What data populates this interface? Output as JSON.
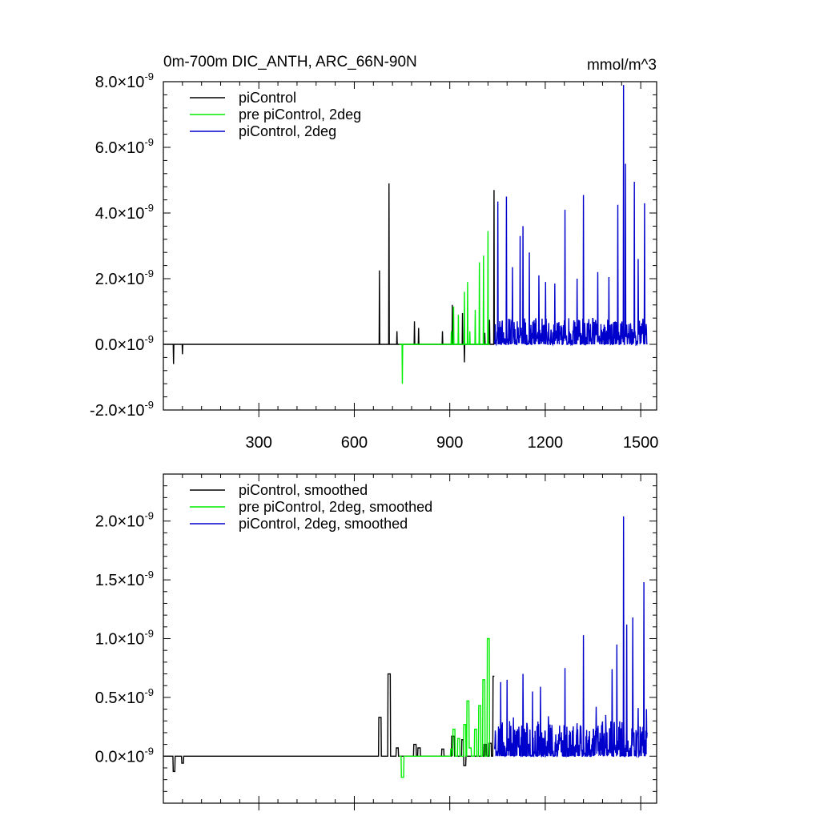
{
  "figure": {
    "title": "0m-700m DIC_ANTH, ARC_66N-90N",
    "units": "mmol/m^3"
  },
  "colors": {
    "piControl": "#000000",
    "pre_piControl_2deg": "#00ee00",
    "piControl_2deg": "#0000cc"
  },
  "chart_data": [
    {
      "type": "line",
      "title": "0m-700m DIC_ANTH, ARC_66N-90N",
      "units": "mmol/m^3",
      "xlim": [
        0,
        1550
      ],
      "ylim": [
        -2e-09,
        8e-09
      ],
      "xticks": [
        300,
        600,
        900,
        1200,
        1500
      ],
      "xtick_labels": [
        "300",
        "600",
        "900",
        "1200",
        "1500"
      ],
      "yticks": [
        -2e-09,
        0,
        2e-09,
        4e-09,
        6e-09,
        8e-09
      ],
      "ytick_labels": [
        {
          "mant": "-2.0",
          "exp": "-9"
        },
        {
          "mant": "0.0",
          "exp": "-9"
        },
        {
          "mant": "2.0",
          "exp": "-9"
        },
        {
          "mant": "4.0",
          "exp": "-9"
        },
        {
          "mant": "6.0",
          "exp": "-9"
        },
        {
          "mant": "8.0",
          "exp": "-9"
        }
      ],
      "legend_position": "top-left",
      "series": [
        {
          "name": "piControl",
          "color": "#000000",
          "range": [
            1,
            1040
          ],
          "spikes": [
            [
              32,
              -6e-10
            ],
            [
              60,
              -3e-10
            ],
            [
              679,
              2.25e-09
            ],
            [
              709,
              4.9e-09
            ],
            [
              734,
              4e-10
            ],
            [
              789,
              7e-10
            ],
            [
              802,
              5e-10
            ],
            [
              877,
              4e-10
            ],
            [
              908,
              1.2e-09
            ],
            [
              940,
              9.5e-10
            ],
            [
              946,
              -5.5e-10
            ],
            [
              1010,
              3.5e-10
            ],
            [
              1025,
              7.5e-10
            ],
            [
              1039,
              4.7e-09
            ]
          ]
        },
        {
          "name": "pre piControl, 2deg",
          "color": "#00ee00",
          "range": [
            741,
            1026
          ],
          "spikes": [
            [
              751,
              -1.2e-09
            ],
            [
              905,
              4e-10
            ],
            [
              912,
              1.15e-09
            ],
            [
              927,
              9e-10
            ],
            [
              946,
              1.6e-09
            ],
            [
              956,
              1.9e-09
            ],
            [
              963,
              4e-10
            ],
            [
              980,
              1.05e-09
            ],
            [
              993,
              2.5e-09
            ],
            [
              1006,
              2.7e-09
            ],
            [
              1020,
              3.45e-09
            ]
          ]
        },
        {
          "name": "piControl, 2deg",
          "color": "#0000cc",
          "range": [
            1041,
            1520
          ],
          "seed": 11,
          "noise": 8e-10,
          "spikes": [
            [
              1051,
              4.35e-09
            ],
            [
              1078,
              4.5e-09
            ],
            [
              1097,
              2.35e-09
            ],
            [
              1121,
              3.3e-09
            ],
            [
              1130,
              3.6e-09
            ],
            [
              1150,
              2.8e-09
            ],
            [
              1180,
              2.1e-09
            ],
            [
              1201,
              1.9e-09
            ],
            [
              1230,
              1.85e-09
            ],
            [
              1262,
              4.1e-09
            ],
            [
              1300,
              2e-09
            ],
            [
              1320,
              4.55e-09
            ],
            [
              1365,
              2.2e-09
            ],
            [
              1400,
              2.05e-09
            ],
            [
              1428,
              4.25e-09
            ],
            [
              1446,
              7.9e-09
            ],
            [
              1452,
              5.5e-09
            ],
            [
              1480,
              4.95e-09
            ],
            [
              1492,
              2.6e-09
            ],
            [
              1512,
              4.3e-09
            ]
          ]
        }
      ]
    },
    {
      "type": "line",
      "xlim": [
        0,
        1550
      ],
      "ylim": [
        -4e-10,
        2.4e-09
      ],
      "xticks": [
        300,
        600,
        900,
        1200,
        1500
      ],
      "yticks": [
        0,
        5e-10,
        1e-09,
        1.5e-09,
        2e-09
      ],
      "ytick_labels": [
        {
          "mant": "0.0",
          "exp": "-9"
        },
        {
          "mant": "0.5",
          "exp": "-9"
        },
        {
          "mant": "1.0",
          "exp": "-9"
        },
        {
          "mant": "1.5",
          "exp": "-9"
        },
        {
          "mant": "2.0",
          "exp": "-9"
        }
      ],
      "legend_position": "top-left",
      "series": [
        {
          "name": "piControl, smoothed",
          "color": "#000000",
          "range": [
            1,
            1040
          ],
          "blocks": [
            [
              31,
              36,
              -1.3e-10
            ],
            [
              58,
              63,
              -6e-11
            ],
            [
              677,
              684,
              3.3e-10
            ],
            [
              706,
              713,
              7e-10
            ],
            [
              732,
              738,
              7e-11
            ],
            [
              787,
              794,
              1e-10
            ],
            [
              800,
              807,
              7e-11
            ],
            [
              875,
              881,
              6e-11
            ],
            [
              906,
              914,
              1.7e-10
            ],
            [
              938,
              944,
              1.4e-10
            ],
            [
              944,
              950,
              -8e-11
            ],
            [
              1008,
              1014,
              1e-10
            ],
            [
              1023,
              1030,
              1.1e-10
            ],
            [
              1036,
              1041,
              6.8e-10
            ]
          ]
        },
        {
          "name": "pre piControl, 2deg, smoothed",
          "color": "#00ee00",
          "range": [
            741,
            1026
          ],
          "blocks": [
            [
              748,
              755,
              -1.8e-10
            ],
            [
              903,
              908,
              6e-11
            ],
            [
              910,
              916,
              2.3e-10
            ],
            [
              925,
              931,
              1.5e-10
            ],
            [
              944,
              950,
              2.7e-10
            ],
            [
              954,
              960,
              4.7e-10
            ],
            [
              961,
              967,
              7e-11
            ],
            [
              978,
              984,
              2.3e-10
            ],
            [
              991,
              997,
              4.3e-10
            ],
            [
              1004,
              1010,
              6.5e-10
            ],
            [
              1018,
              1024,
              1e-09
            ]
          ]
        },
        {
          "name": "piControl, 2deg, smoothed",
          "color": "#0000cc",
          "range": [
            1041,
            1520
          ],
          "seed": 23,
          "noise": 3e-10,
          "spikes": [
            [
              1060,
              6.3e-10
            ],
            [
              1080,
              6.5e-10
            ],
            [
              1100,
              3.3e-10
            ],
            [
              1130,
              7e-10
            ],
            [
              1160,
              5.5e-10
            ],
            [
              1185,
              5.9e-10
            ],
            [
              1210,
              3.4e-10
            ],
            [
              1245,
              2.6e-10
            ],
            [
              1262,
              7.5e-10
            ],
            [
              1300,
              2.8e-10
            ],
            [
              1320,
              1.03e-09
            ],
            [
              1360,
              4.2e-10
            ],
            [
              1390,
              3.5e-10
            ],
            [
              1410,
              7.4e-10
            ],
            [
              1425,
              9.5e-10
            ],
            [
              1446,
              2.04e-09
            ],
            [
              1456,
              1.12e-09
            ],
            [
              1475,
              1.18e-09
            ],
            [
              1492,
              4.1e-10
            ],
            [
              1510,
              1.48e-09
            ],
            [
              1518,
              4e-10
            ]
          ]
        }
      ]
    }
  ]
}
